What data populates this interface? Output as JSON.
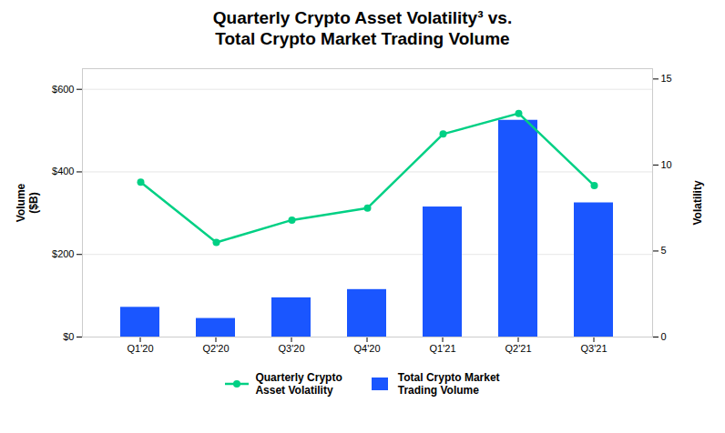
{
  "chart_data": {
    "type": "bar",
    "title": "Quarterly Crypto Asset Volatility³  vs.\nTotal Crypto Market Trading Volume",
    "categories": [
      "Q1'20",
      "Q2'20",
      "Q3'20",
      "Q4'20",
      "Q1'21",
      "Q2'21",
      "Q3'21"
    ],
    "series": [
      {
        "name": "Quarterly Crypto\nAsset Volatility",
        "type": "line",
        "marker": "circle",
        "axis": "y2",
        "color": "#00d084",
        "values": [
          9.0,
          5.5,
          6.8,
          7.5,
          11.8,
          13.0,
          8.8
        ]
      },
      {
        "name": "Total Crypto Market\nTrading Volume",
        "type": "bar",
        "color": "#1a56ff",
        "values": [
          72,
          45,
          95,
          115,
          315,
          525,
          325
        ]
      }
    ],
    "ylabel": "Volume\n($B)",
    "y2label": "Volatility",
    "ylim": [
      0,
      650
    ],
    "yticks": [
      {
        "value": 0,
        "label": "$0"
      },
      {
        "value": 200,
        "label": "$200"
      },
      {
        "value": 400,
        "label": "$400"
      },
      {
        "value": 600,
        "label": "$600"
      }
    ],
    "y2lim": [
      0,
      15.6
    ],
    "y2ticks": [
      0,
      5,
      10,
      15
    ],
    "grid": true,
    "legend": "bottom"
  }
}
